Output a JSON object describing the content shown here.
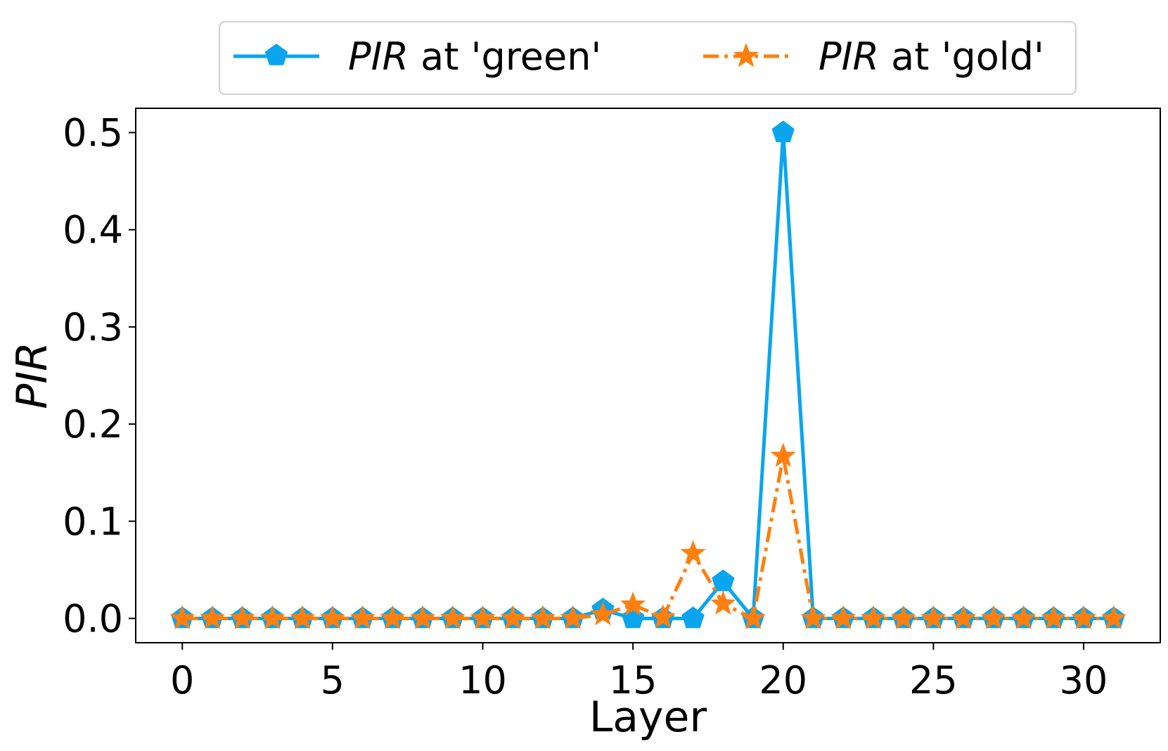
{
  "chart_data": {
    "type": "line",
    "xlabel": "Layer",
    "ylabel": "PIR",
    "xlim": [
      -1.55,
      32.55
    ],
    "ylim": [
      -0.025,
      0.525
    ],
    "xticks": [
      0,
      5,
      10,
      15,
      20,
      25,
      30
    ],
    "yticks": [
      0.0,
      0.1,
      0.2,
      0.3,
      0.4,
      0.5
    ],
    "ytick_labels": [
      "0.0",
      "0.1",
      "0.2",
      "0.3",
      "0.4",
      "0.5"
    ],
    "x": [
      0,
      1,
      2,
      3,
      4,
      5,
      6,
      7,
      8,
      9,
      10,
      11,
      12,
      13,
      14,
      15,
      16,
      17,
      18,
      19,
      20,
      21,
      22,
      23,
      24,
      25,
      26,
      27,
      28,
      29,
      30,
      31
    ],
    "series": [
      {
        "name_italic": "PIR",
        "name_rest": " at 'green'",
        "color": "#0aa5ee",
        "linestyle": "solid",
        "marker": "pentagon",
        "values": [
          0,
          0,
          0,
          0,
          0,
          0,
          0,
          0,
          0,
          0,
          0,
          0,
          0,
          0,
          0.009,
          0,
          0,
          0,
          0.038,
          0,
          0.5,
          0,
          0,
          0,
          0,
          0,
          0,
          0,
          0,
          0,
          0,
          0
        ]
      },
      {
        "name_italic": "PIR",
        "name_rest": " at 'gold'",
        "color": "#ff7f0e",
        "linestyle": "dashdot",
        "marker": "star",
        "values": [
          0,
          0,
          0,
          0,
          0,
          0,
          0,
          0,
          0,
          0,
          0,
          0,
          0,
          0,
          0.004,
          0.014,
          0.001,
          0.067,
          0.015,
          0,
          0.167,
          0,
          0,
          0,
          0,
          0,
          0,
          0,
          0,
          0,
          0,
          0
        ]
      }
    ],
    "legend_position": "top-center",
    "grid": false
  }
}
